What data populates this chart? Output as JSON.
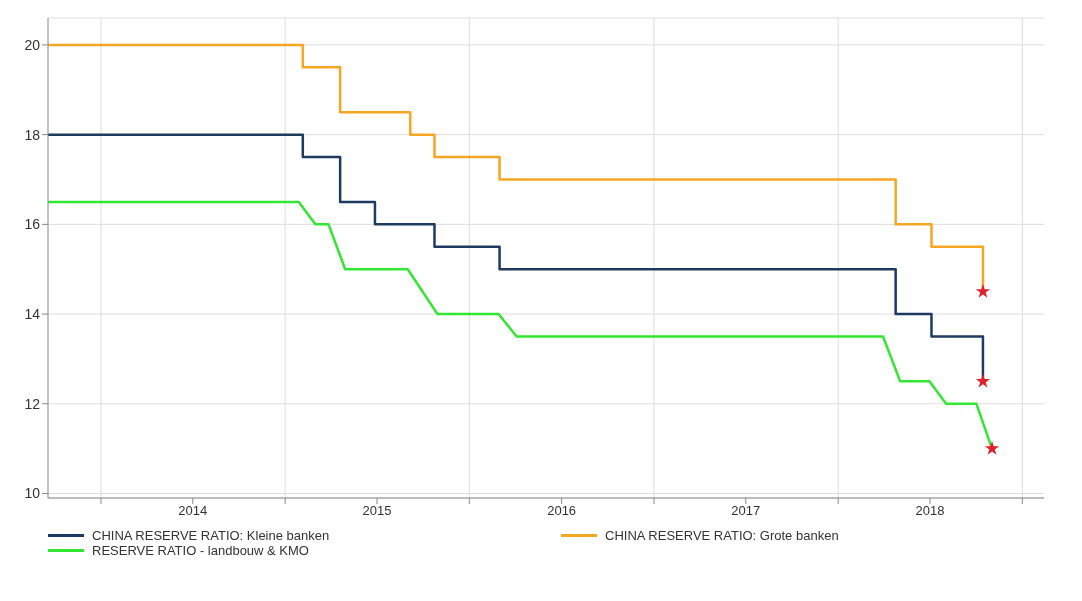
{
  "chart_data": {
    "type": "step",
    "xlim": [
      "2013-09-18",
      "2019-02-13"
    ],
    "xticks": [
      {
        "value": "2014-01-01",
        "label": null
      },
      {
        "value": "2014-07-02",
        "label": "2014"
      },
      {
        "value": "2015-01-01",
        "label": null
      },
      {
        "value": "2015-07-02",
        "label": "2015"
      },
      {
        "value": "2016-01-01",
        "label": null
      },
      {
        "value": "2016-07-02",
        "label": "2016"
      },
      {
        "value": "2017-01-01",
        "label": null
      },
      {
        "value": "2017-07-02",
        "label": "2017"
      },
      {
        "value": "2018-01-01",
        "label": null
      },
      {
        "value": "2018-07-02",
        "label": "2018"
      },
      {
        "value": "2019-01-01",
        "label": null
      }
    ],
    "ylim": [
      9.9,
      20.6
    ],
    "yticks": [
      10,
      12,
      14,
      16,
      18,
      20
    ],
    "grid": true,
    "legend": "bottom",
    "marker": "none",
    "series": [
      {
        "name": "CHINA RESERVE RATIO: Kleine banken",
        "color": "#1f3a5f",
        "x": [
          "2013-09-18",
          "2015-02-05",
          "2015-04-20",
          "2015-06-28",
          "2015-10-24",
          "2016-03-01",
          "2018-04-25",
          "2018-07-05",
          "2018-10-15"
        ],
        "values": [
          18,
          17.5,
          16.5,
          16,
          15.5,
          15,
          14,
          13.5,
          12.5
        ]
      },
      {
        "name": "CHINA RESERVE RATIO: Grote banken",
        "color": "#f5a623",
        "x": [
          "2013-09-18",
          "2015-02-05",
          "2015-04-20",
          "2015-09-06",
          "2015-10-24",
          "2016-03-01",
          "2018-04-25",
          "2018-07-05",
          "2018-10-15"
        ],
        "values": [
          20,
          19.5,
          18.5,
          18,
          17.5,
          17,
          16,
          15.5,
          14.5
        ]
      },
      {
        "name": "RESERVE RATIO - landbouw & KMO",
        "type": "line",
        "color": "#33e633",
        "x": [
          "2013-09-18",
          "2015-01-28",
          "2015-03-02",
          "2015-03-28",
          "2015-04-30",
          "2015-09-01",
          "2015-10-30",
          "2016-02-28",
          "2016-04-04",
          "2018-03-31",
          "2018-05-04",
          "2018-07-01",
          "2018-08-03",
          "2018-10-02",
          "2018-11-02"
        ],
        "values": [
          16.5,
          16.5,
          16,
          16,
          15,
          15,
          14,
          14,
          13.5,
          13.5,
          12.5,
          12.5,
          12,
          12,
          11
        ]
      },
      {
        "type": "scatter",
        "marker": "star",
        "color": "#e0202a",
        "x": [
          "2018-10-15",
          "2018-10-15",
          "2018-11-02"
        ],
        "values": [
          14.5,
          12.5,
          11
        ]
      }
    ]
  }
}
